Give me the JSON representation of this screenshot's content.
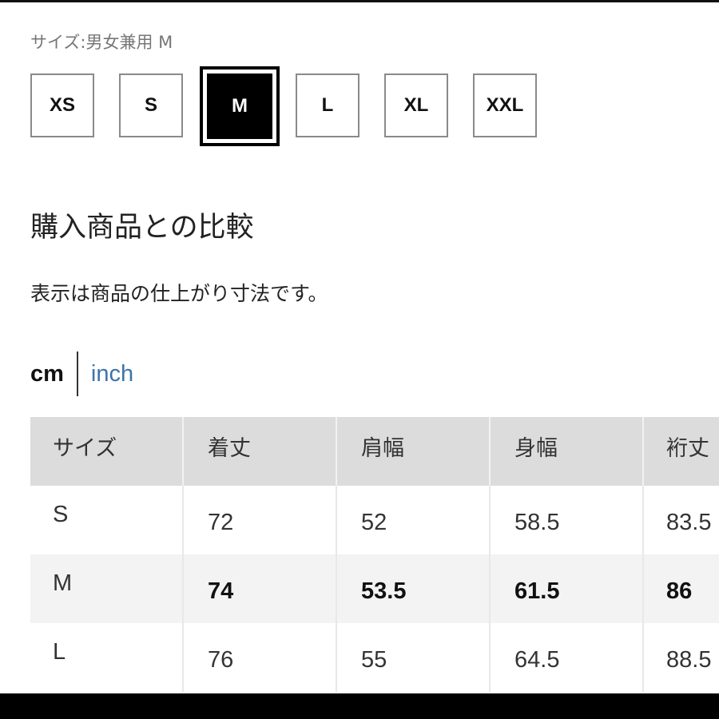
{
  "size_selector": {
    "label": "サイズ:男女兼用 M",
    "options": [
      "XS",
      "S",
      "M",
      "L",
      "XL",
      "XXL"
    ],
    "selected": "M"
  },
  "comparison": {
    "title": "購入商品との比較",
    "description": "表示は商品の仕上がり寸法です。"
  },
  "units": {
    "cm": "cm",
    "inch": "inch",
    "selected": "cm",
    "inch_color": "#3d74a8"
  },
  "table": {
    "headers": [
      "サイズ",
      "着丈",
      "肩幅",
      "身幅",
      "裄丈"
    ],
    "rows": [
      [
        "S",
        "72",
        "52",
        "58.5",
        "83.5"
      ],
      [
        "M",
        "74",
        "53.5",
        "61.5",
        "86"
      ],
      [
        "L",
        "76",
        "55",
        "64.5",
        "88.5"
      ]
    ],
    "highlighted_row": "M"
  }
}
